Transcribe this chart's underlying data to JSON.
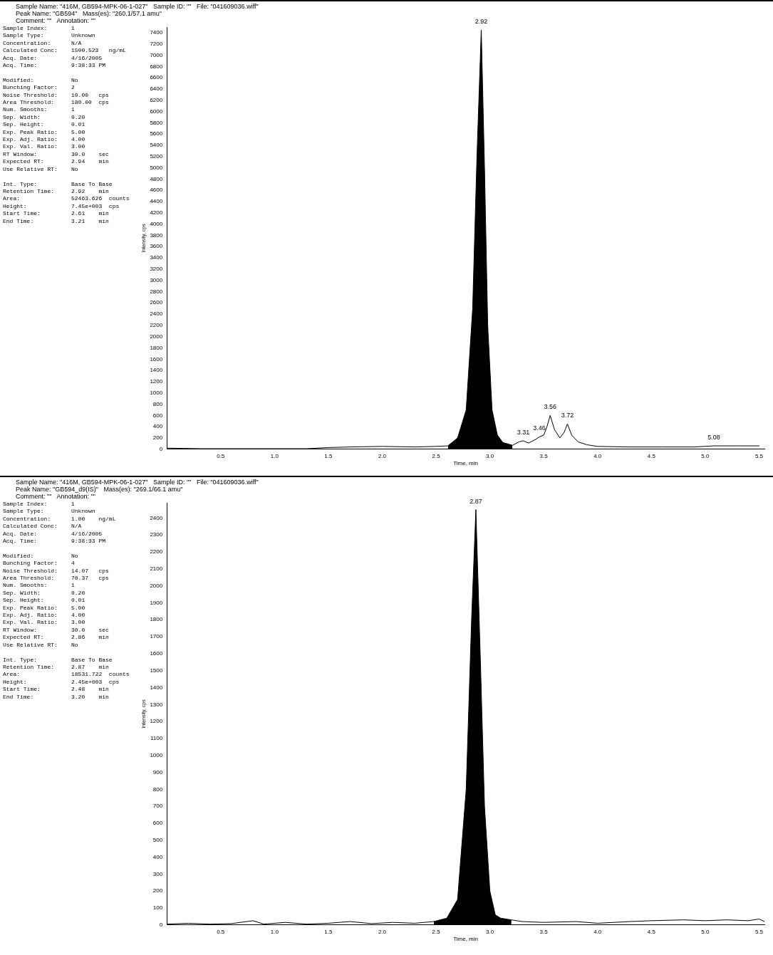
{
  "chart_data": [
    {
      "type": "line",
      "xlabel": "Time, min",
      "ylabel": "Intensity, cps",
      "grid": false,
      "legend": false,
      "marker": "none",
      "line_style": "solid",
      "xlim": [
        0,
        5.55
      ],
      "xticks": [
        0.5,
        {
          "value": 1,
          "label": "1.0"
        },
        1.5,
        {
          "value": 2,
          "label": "2.0"
        },
        2.5,
        {
          "value": 3,
          "label": "3.0"
        },
        3.5,
        {
          "value": 4,
          "label": "4.0"
        },
        4.5,
        {
          "value": 5,
          "label": "5.0"
        },
        5.5
      ],
      "ylim": [
        0,
        7500
      ],
      "yticks": [
        0,
        200,
        400,
        600,
        800,
        1000,
        1200,
        1400,
        1600,
        1800,
        2000,
        2200,
        2400,
        2600,
        2800,
        3000,
        3200,
        3400,
        3600,
        3800,
        4000,
        4200,
        4400,
        4600,
        4800,
        5000,
        5200,
        5400,
        5600,
        5800,
        6000,
        6200,
        6400,
        6600,
        6800,
        7000,
        7200,
        7400
      ],
      "series": [
        {
          "type": "area",
          "color": "#000000",
          "x": [
            2.61,
            2.7,
            2.78,
            2.84,
            2.88,
            2.92,
            2.95,
            2.98,
            3.02,
            3.07,
            3.12,
            3.21
          ],
          "values": [
            60,
            200,
            700,
            2500,
            5200,
            7450,
            5000,
            2200,
            700,
            250,
            120,
            70
          ]
        },
        {
          "type": "line",
          "color": "#000000",
          "x": [
            0,
            0.3,
            0.6,
            1.0,
            1.3,
            1.5,
            1.7,
            2.0,
            2.3,
            2.5,
            2.61,
            2.7,
            2.78,
            2.84,
            2.88,
            2.92,
            2.95,
            2.98,
            3.02,
            3.07,
            3.12,
            3.21,
            3.27,
            3.31,
            3.36,
            3.42,
            3.46,
            3.5,
            3.53,
            3.56,
            3.6,
            3.65,
            3.69,
            3.72,
            3.76,
            3.82,
            3.9,
            4.0,
            4.3,
            4.6,
            4.9,
            5.08,
            5.3,
            5.5
          ],
          "values": [
            20,
            10,
            10,
            10,
            10,
            30,
            40,
            50,
            40,
            50,
            60,
            200,
            700,
            2500,
            5200,
            7450,
            5000,
            2200,
            700,
            250,
            120,
            70,
            130,
            150,
            110,
            170,
            220,
            250,
            400,
            600,
            350,
            200,
            300,
            450,
            250,
            130,
            80,
            50,
            40,
            40,
            40,
            60,
            60,
            60
          ]
        }
      ],
      "annotations": [
        "Sample Name: \"416M, GB594-MPK-06-1-027\"   Sample ID: \"\"   File: \"041609036.wiff\"",
        "Peak Name: \"GB594\"   Mass(es): \"260.1/57.1 amu\"",
        "Comment: \"\"   Annotation: \"\"",
        "Sample Index:       1",
        "Sample Type:        Unknown",
        "Concentration:      N/A",
        "Calculated Conc:    1500.523   ng/mL",
        "Acq. Date:          4/16/2005",
        "Acq. Time:          9:38:33 PM",
        "Modified:           No",
        "Bunching Factor:    2",
        "Noise Threshold:    10.00   cps",
        "Area Threshold:     180.00  cps",
        "Num. Smooths:       1",
        "Sep. Width:         0.20",
        "Sep. Height:        0.01",
        "Exp. Peak Ratio:    5.00",
        "Exp. Adj. Ratio:    4.00",
        "Exp. Val. Ratio:    3.00",
        "RT Window:          30.0    sec",
        "Expected RT:        2.94    min",
        "Use Relative RT:    No",
        "Int. Type:          Base To Base",
        "Retention Time:     2.92    min",
        "Area:               52463.626  counts",
        "Height:             7.45e+003  cps",
        "Start Time:         2.61    min",
        "End Time:           3.21    min",
        {
          "text": "2.92",
          "x": 2.92,
          "y": 7450
        },
        {
          "text": "3.31",
          "x": 3.31,
          "y": 150
        },
        {
          "text": "3.46",
          "x": 3.46,
          "y": 220
        },
        {
          "text": "3.56",
          "x": 3.56,
          "y": 600
        },
        {
          "text": "3.72",
          "x": 3.72,
          "y": 450
        },
        {
          "text": "5.08",
          "x": 5.08,
          "y": 60
        }
      ]
    },
    {
      "type": "line",
      "xlabel": "Time, min",
      "ylabel": "Intensity, cps",
      "grid": false,
      "legend": false,
      "marker": "none",
      "line_style": "solid",
      "xlim": [
        0,
        5.55
      ],
      "xticks": [
        0.5,
        {
          "value": 1,
          "label": "1.0"
        },
        1.5,
        {
          "value": 2,
          "label": "2.0"
        },
        2.5,
        {
          "value": 3,
          "label": "3.0"
        },
        3.5,
        {
          "value": 4,
          "label": "4.0"
        },
        4.5,
        {
          "value": 5,
          "label": "5.0"
        },
        5.5
      ],
      "ylim": [
        0,
        2490
      ],
      "yticks": [
        0,
        100,
        200,
        300,
        400,
        500,
        600,
        700,
        800,
        900,
        1000,
        1100,
        1200,
        1300,
        1400,
        1500,
        1600,
        1700,
        1800,
        1900,
        2000,
        2100,
        2200,
        2300,
        2400
      ],
      "series": [
        {
          "type": "area",
          "color": "#000000",
          "x": [
            2.48,
            2.6,
            2.7,
            2.78,
            2.83,
            2.87,
            2.91,
            2.95,
            3.0,
            3.05,
            3.1,
            3.2
          ],
          "values": [
            20,
            40,
            150,
            800,
            1800,
            2450,
            1600,
            700,
            200,
            60,
            40,
            30
          ]
        },
        {
          "type": "line",
          "color": "#000000",
          "x": [
            0,
            0.2,
            0.4,
            0.6,
            0.8,
            0.9,
            1.1,
            1.3,
            1.5,
            1.7,
            1.9,
            2.1,
            2.3,
            2.48,
            2.6,
            2.7,
            2.78,
            2.83,
            2.87,
            2.91,
            2.95,
            3.0,
            3.05,
            3.1,
            3.2,
            3.3,
            3.5,
            3.8,
            4.0,
            4.3,
            4.5,
            4.8,
            5.0,
            5.2,
            5.4,
            5.5,
            5.55
          ],
          "values": [
            5,
            10,
            5,
            8,
            25,
            5,
            15,
            5,
            10,
            20,
            8,
            15,
            10,
            20,
            40,
            150,
            800,
            1800,
            2450,
            1600,
            700,
            200,
            60,
            40,
            30,
            20,
            15,
            20,
            10,
            20,
            25,
            30,
            25,
            30,
            25,
            35,
            20
          ]
        }
      ],
      "annotations": [
        "Sample Name: \"416M, GB594-MPK-06-1-027\"   Sample ID: \"\"   File: \"041609036.wiff\"",
        "Peak Name: \"GB594_d9(IS)\"   Mass(es): \"269.1/66.1 amu\"",
        "Comment: \"\"   Annotation: \"\"",
        "Sample Index:       1",
        "Sample Type:        Unknown",
        "Concentration:      1.00    ng/mL",
        "Calculated Conc:    N/A",
        "Acq. Date:          4/16/2005",
        "Acq. Time:          9:38:33 PM",
        "Modified:           No",
        "Bunching Factor:    4",
        "Noise Threshold:    14.07   cps",
        "Area Threshold:     70.37   cps",
        "Num. Smooths:       1",
        "Sep. Width:         0.20",
        "Sep. Height:        0.01",
        "Exp. Peak Ratio:    5.00",
        "Exp. Adj. Ratio:    4.00",
        "Exp. Val. Ratio:    3.00",
        "RT Window:          30.0    sec",
        "Expected RT:        2.86    min",
        "Use Relative RT:    No",
        "Int. Type:          Base To Base",
        "Retention Time:     2.87    min",
        "Area:               18531.722  counts",
        "Height:             2.45e+003  cps",
        "Start Time:         2.48    min",
        "End Time:           3.20    min",
        {
          "text": "2.87",
          "x": 2.87,
          "y": 2450
        }
      ]
    }
  ]
}
